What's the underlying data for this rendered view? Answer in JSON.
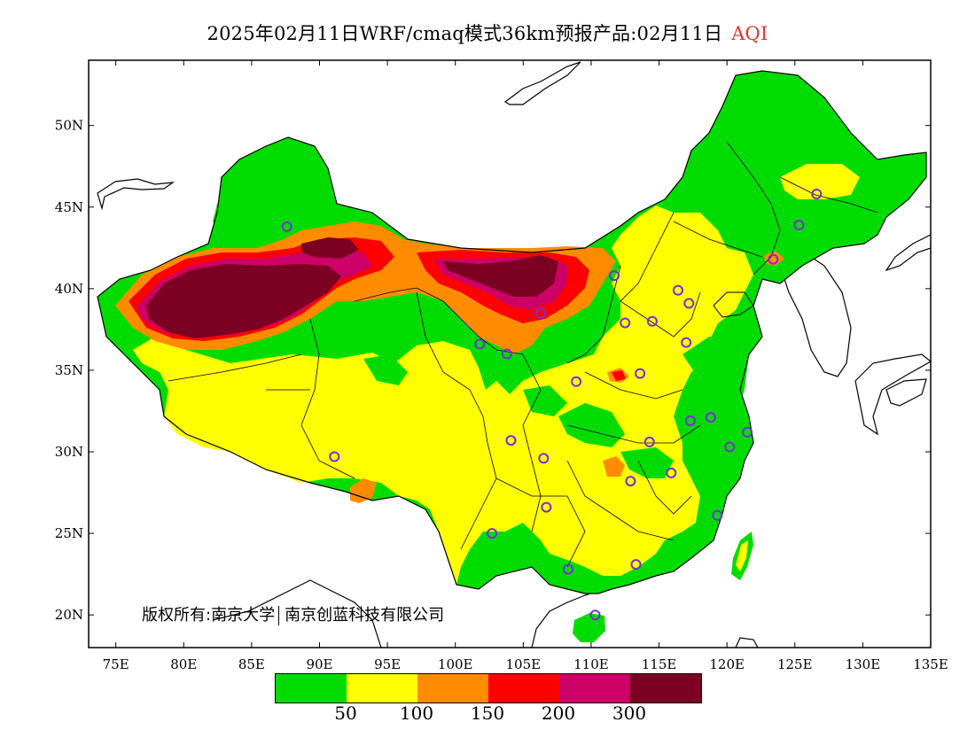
{
  "title": {
    "main": "2025年02月11日WRF/cmaq模式36km预报产品:02月11日",
    "variable": "AQI"
  },
  "axes": {
    "lat_ticks": [
      "20N",
      "25N",
      "30N",
      "35N",
      "40N",
      "45N",
      "50N"
    ],
    "lon_ticks": [
      "75E",
      "80E",
      "85E",
      "90E",
      "95E",
      "100E",
      "105E",
      "110E",
      "115E",
      "120E",
      "125E",
      "130E",
      "135E"
    ],
    "lon_range": [
      73,
      135
    ],
    "lat_range": [
      18,
      54
    ]
  },
  "copyright": {
    "label": "版权所有:",
    "org1": "南京大学",
    "org2": "南京创蓝科技有限公司"
  },
  "legend": {
    "colors": [
      "#00dc00",
      "#ffff00",
      "#ff8c00",
      "#ff0000",
      "#cc0066",
      "#7b0021"
    ],
    "labels": [
      "50",
      "100",
      "150",
      "200",
      "300"
    ]
  },
  "stations": [
    [
      87.6,
      43.8
    ],
    [
      91.1,
      29.7
    ],
    [
      101.8,
      36.6
    ],
    [
      103.8,
      36.0
    ],
    [
      106.3,
      38.5
    ],
    [
      111.7,
      40.8
    ],
    [
      112.5,
      37.9
    ],
    [
      114.5,
      38.0
    ],
    [
      116.4,
      39.9
    ],
    [
      117.2,
      39.1
    ],
    [
      117.0,
      36.7
    ],
    [
      113.6,
      34.8
    ],
    [
      108.9,
      34.3
    ],
    [
      104.1,
      30.7
    ],
    [
      106.5,
      29.6
    ],
    [
      106.7,
      26.6
    ],
    [
      102.7,
      25.0
    ],
    [
      108.3,
      22.8
    ],
    [
      113.3,
      23.1
    ],
    [
      110.3,
      20.0
    ],
    [
      112.9,
      28.2
    ],
    [
      114.3,
      30.6
    ],
    [
      115.9,
      28.7
    ],
    [
      117.3,
      31.9
    ],
    [
      118.8,
      32.1
    ],
    [
      120.2,
      30.3
    ],
    [
      121.5,
      31.2
    ],
    [
      119.3,
      26.1
    ],
    [
      123.4,
      41.8
    ],
    [
      125.3,
      43.9
    ],
    [
      126.6,
      45.8
    ]
  ]
}
